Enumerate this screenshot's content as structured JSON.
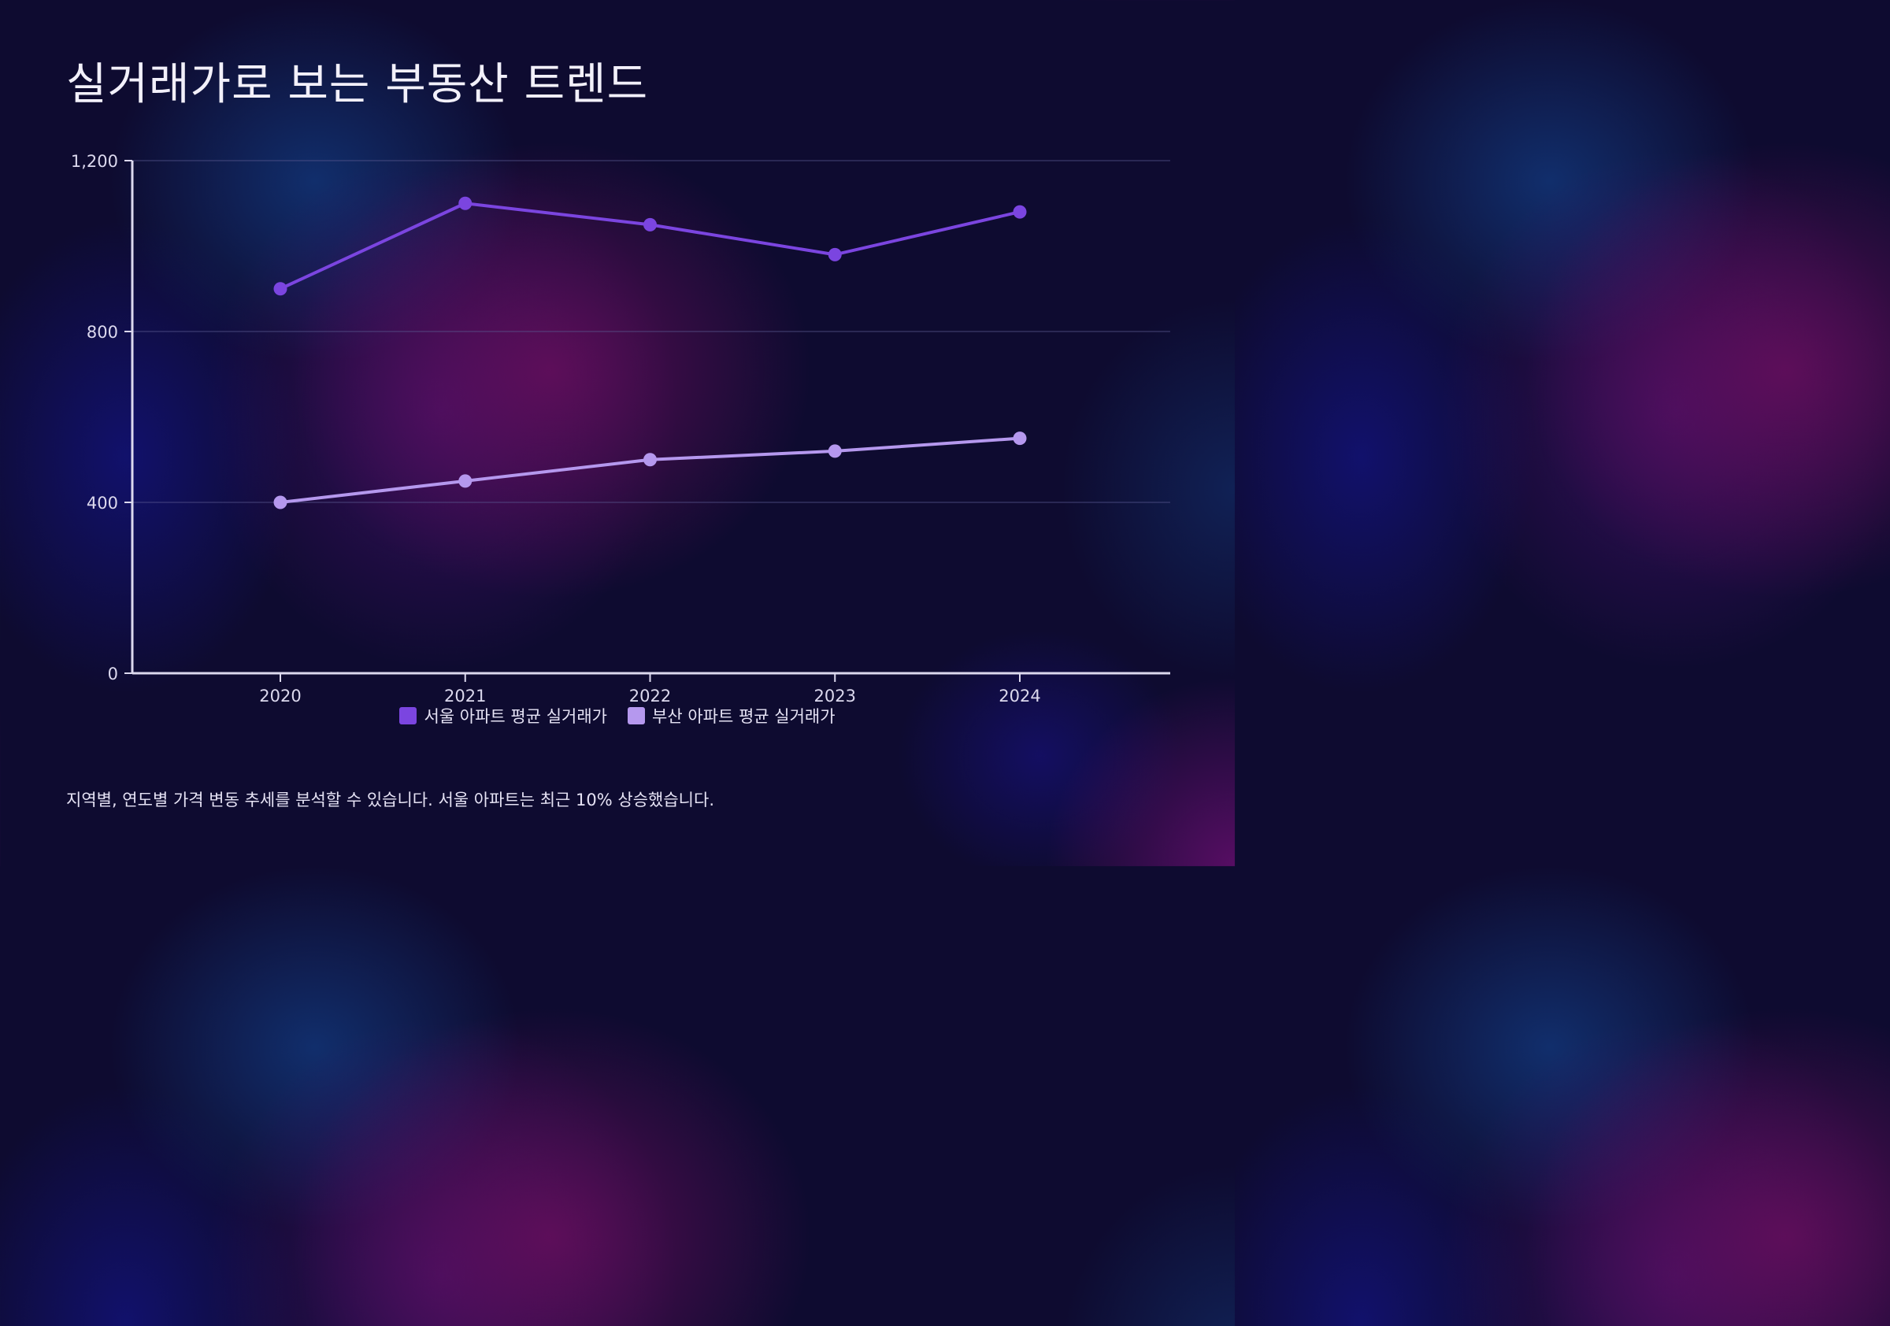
{
  "title": "실거래가로 보는 부동산 트렌드",
  "footnote": "지역별, 연도별 가격 변동 추세를 분석할 수 있습니다. 서울 아파트는 최근 10% 상승했습니다.",
  "colors": {
    "seoul": "#7b45e0",
    "busan": "#b598ee",
    "axis": "#dcd9ee",
    "grid": "#5a5890"
  },
  "chart_data": {
    "type": "line",
    "title": "",
    "xlabel": "",
    "ylabel": "",
    "x": [
      "2020",
      "2021",
      "2022",
      "2023",
      "2024"
    ],
    "ylim": [
      0,
      1200
    ],
    "y_ticks": [
      0,
      400,
      800,
      1200
    ],
    "y_tick_labels": [
      "0",
      "400",
      "800",
      "1,200"
    ],
    "grid": true,
    "legend_position": "bottom-center",
    "series": [
      {
        "name": "서울 아파트 평균 실거래가",
        "color": "#7b45e0",
        "values": [
          900,
          1100,
          1050,
          980,
          1080
        ]
      },
      {
        "name": "부산 아파트 평균 실거래가",
        "color": "#b598ee",
        "values": [
          400,
          450,
          500,
          520,
          550
        ]
      }
    ]
  }
}
